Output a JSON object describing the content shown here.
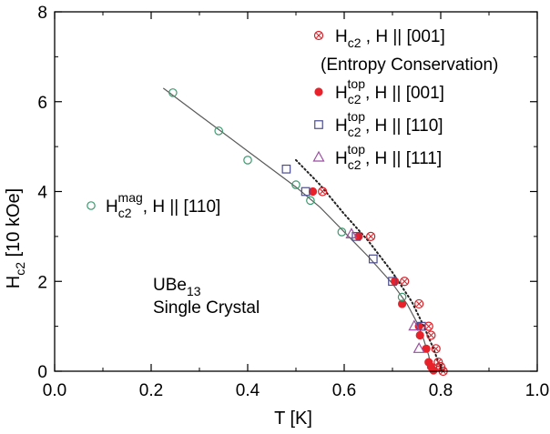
{
  "chart_data": {
    "type": "scatter",
    "xlabel": "T [K]",
    "ylabel": "H",
    "ylabel_sub": "c2",
    "ylabel_unit": " [10 kOe]",
    "xlim": [
      0.0,
      1.0
    ],
    "ylim": [
      0,
      8
    ],
    "x_ticks": [
      0.0,
      0.2,
      0.4,
      0.6,
      0.8,
      1.0
    ],
    "x_tick_labels": [
      "0.0",
      "0.2",
      "0.4",
      "0.6",
      "0.8",
      "1.0"
    ],
    "y_ticks": [
      0,
      2,
      4,
      6,
      8
    ],
    "y_tick_labels": [
      "0",
      "2",
      "4",
      "6",
      "8"
    ],
    "grid": false,
    "legend_position": "top-right",
    "annotations": {
      "material": "UBe",
      "material_sub": "13",
      "crystal": "Single Crystal"
    },
    "series": [
      {
        "name": "Hc2 , H || [001] (Entropy Conservation)",
        "label_main": "H",
        "label_sub": "c2",
        "label_rest": " , H || [001]",
        "label_line2": "(Entropy Conservation)",
        "marker": "circle-cross",
        "color": "#d42027",
        "points": [
          [
            0.555,
            4.0
          ],
          [
            0.655,
            3.0
          ],
          [
            0.725,
            2.0
          ],
          [
            0.755,
            1.5
          ],
          [
            0.775,
            1.0
          ],
          [
            0.78,
            0.8
          ],
          [
            0.79,
            0.5
          ],
          [
            0.795,
            0.2
          ],
          [
            0.8,
            0.1
          ],
          [
            0.805,
            0.0
          ]
        ]
      },
      {
        "name": "Hc2top, H || [001]",
        "label_main": "H",
        "label_sub": "c2",
        "label_sup": "top",
        "label_rest": ", H || [001]",
        "marker": "filled-circle",
        "color": "#e8222a",
        "points": [
          [
            0.535,
            4.0
          ],
          [
            0.63,
            3.0
          ],
          [
            0.705,
            2.0
          ],
          [
            0.72,
            1.5
          ],
          [
            0.755,
            1.0
          ],
          [
            0.757,
            0.8
          ],
          [
            0.77,
            0.5
          ],
          [
            0.775,
            0.2
          ],
          [
            0.78,
            0.1
          ],
          [
            0.785,
            0.02
          ]
        ]
      },
      {
        "name": "Hc2top, H || [110]",
        "label_main": "H",
        "label_sub": "c2",
        "label_sup": "top",
        "label_rest": ", H || [110]",
        "marker": "open-square",
        "color": "#4b4b8f",
        "points": [
          [
            0.48,
            4.5
          ],
          [
            0.52,
            4.0
          ],
          [
            0.625,
            3.0
          ],
          [
            0.66,
            2.5
          ],
          [
            0.7,
            2.0
          ],
          [
            0.76,
            1.0
          ]
        ]
      },
      {
        "name": "Hc2top, H || [111]",
        "label_main": "H",
        "label_sub": "c2",
        "label_sup": "top",
        "label_rest": ", H || [111]",
        "marker": "open-triangle",
        "color": "#9b4fa0",
        "points": [
          [
            0.615,
            3.05
          ],
          [
            0.745,
            1.0
          ],
          [
            0.755,
            0.5
          ]
        ]
      },
      {
        "name": "Hc2mag, H || [110]",
        "label_main": "H",
        "label_sub": "c2",
        "label_sup": "mag",
        "label_rest": ", H || [110]",
        "marker": "open-circle",
        "color": "#3a9a6e",
        "points": [
          [
            0.245,
            6.2
          ],
          [
            0.34,
            5.35
          ],
          [
            0.4,
            4.7
          ],
          [
            0.5,
            4.15
          ],
          [
            0.53,
            3.8
          ],
          [
            0.595,
            3.1
          ],
          [
            0.72,
            1.65
          ]
        ]
      }
    ],
    "fit_lines": [
      {
        "style": "solid",
        "color": "#5a5a5a",
        "points": [
          [
            0.225,
            6.3
          ],
          [
            0.3,
            5.7
          ],
          [
            0.4,
            4.9
          ],
          [
            0.5,
            4.1
          ],
          [
            0.55,
            3.65
          ],
          [
            0.6,
            3.1
          ],
          [
            0.65,
            2.55
          ],
          [
            0.7,
            1.95
          ],
          [
            0.73,
            1.5
          ],
          [
            0.75,
            1.1
          ],
          [
            0.765,
            0.7
          ],
          [
            0.775,
            0.35
          ],
          [
            0.782,
            0.0
          ]
        ]
      },
      {
        "style": "dotted",
        "color": "#222222",
        "points": [
          [
            0.5,
            4.7
          ],
          [
            0.55,
            4.15
          ],
          [
            0.6,
            3.5
          ],
          [
            0.65,
            2.9
          ],
          [
            0.7,
            2.2
          ],
          [
            0.74,
            1.55
          ],
          [
            0.765,
            1.0
          ],
          [
            0.785,
            0.5
          ],
          [
            0.795,
            0.2
          ],
          [
            0.805,
            0.0
          ]
        ]
      }
    ]
  }
}
